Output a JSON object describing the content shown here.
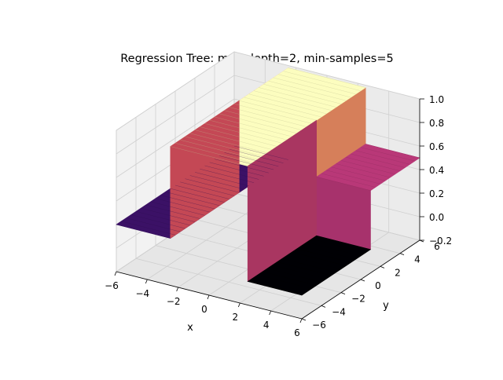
{
  "chart_data": {
    "type": "surface",
    "title": "Regression Tree: max-depth=2, min-samples=5",
    "xlabel": "x",
    "ylabel": "y",
    "zlabel": "",
    "xlim": [
      -6,
      6
    ],
    "ylim": [
      -6,
      6
    ],
    "zlim": [
      -0.2,
      1.0
    ],
    "x_ticks": [
      -6,
      -4,
      -2,
      0,
      2,
      4,
      6
    ],
    "y_ticks": [
      -6,
      -4,
      -2,
      0,
      2,
      4,
      6
    ],
    "z_ticks": [
      -0.2,
      0.0,
      0.2,
      0.4,
      0.6,
      0.8,
      1.0
    ],
    "x_tick_labels": [
      "−6",
      "−4",
      "−2",
      "0",
      "2",
      "4",
      "6"
    ],
    "y_tick_labels": [
      "−6",
      "−4",
      "−2",
      "0",
      "2",
      "4",
      "6"
    ],
    "z_tick_labels": [
      "−0.2",
      "0.0",
      "0.2",
      "0.4",
      "0.6",
      "0.8",
      "1.0"
    ],
    "colormap": "magma",
    "grid": true,
    "regions": [
      {
        "x": [
          -6,
          -2.5
        ],
        "y": [
          -6,
          6
        ],
        "value": 0.2
      },
      {
        "x": [
          -2.5,
          2.5
        ],
        "y": [
          -6,
          6
        ],
        "value": 0.98
      },
      {
        "x": [
          2.5,
          6
        ],
        "y": [
          -6,
          1
        ],
        "value": 0.0
      },
      {
        "x": [
          2.5,
          6
        ],
        "y": [
          1,
          6
        ],
        "value": 0.5
      }
    ]
  }
}
